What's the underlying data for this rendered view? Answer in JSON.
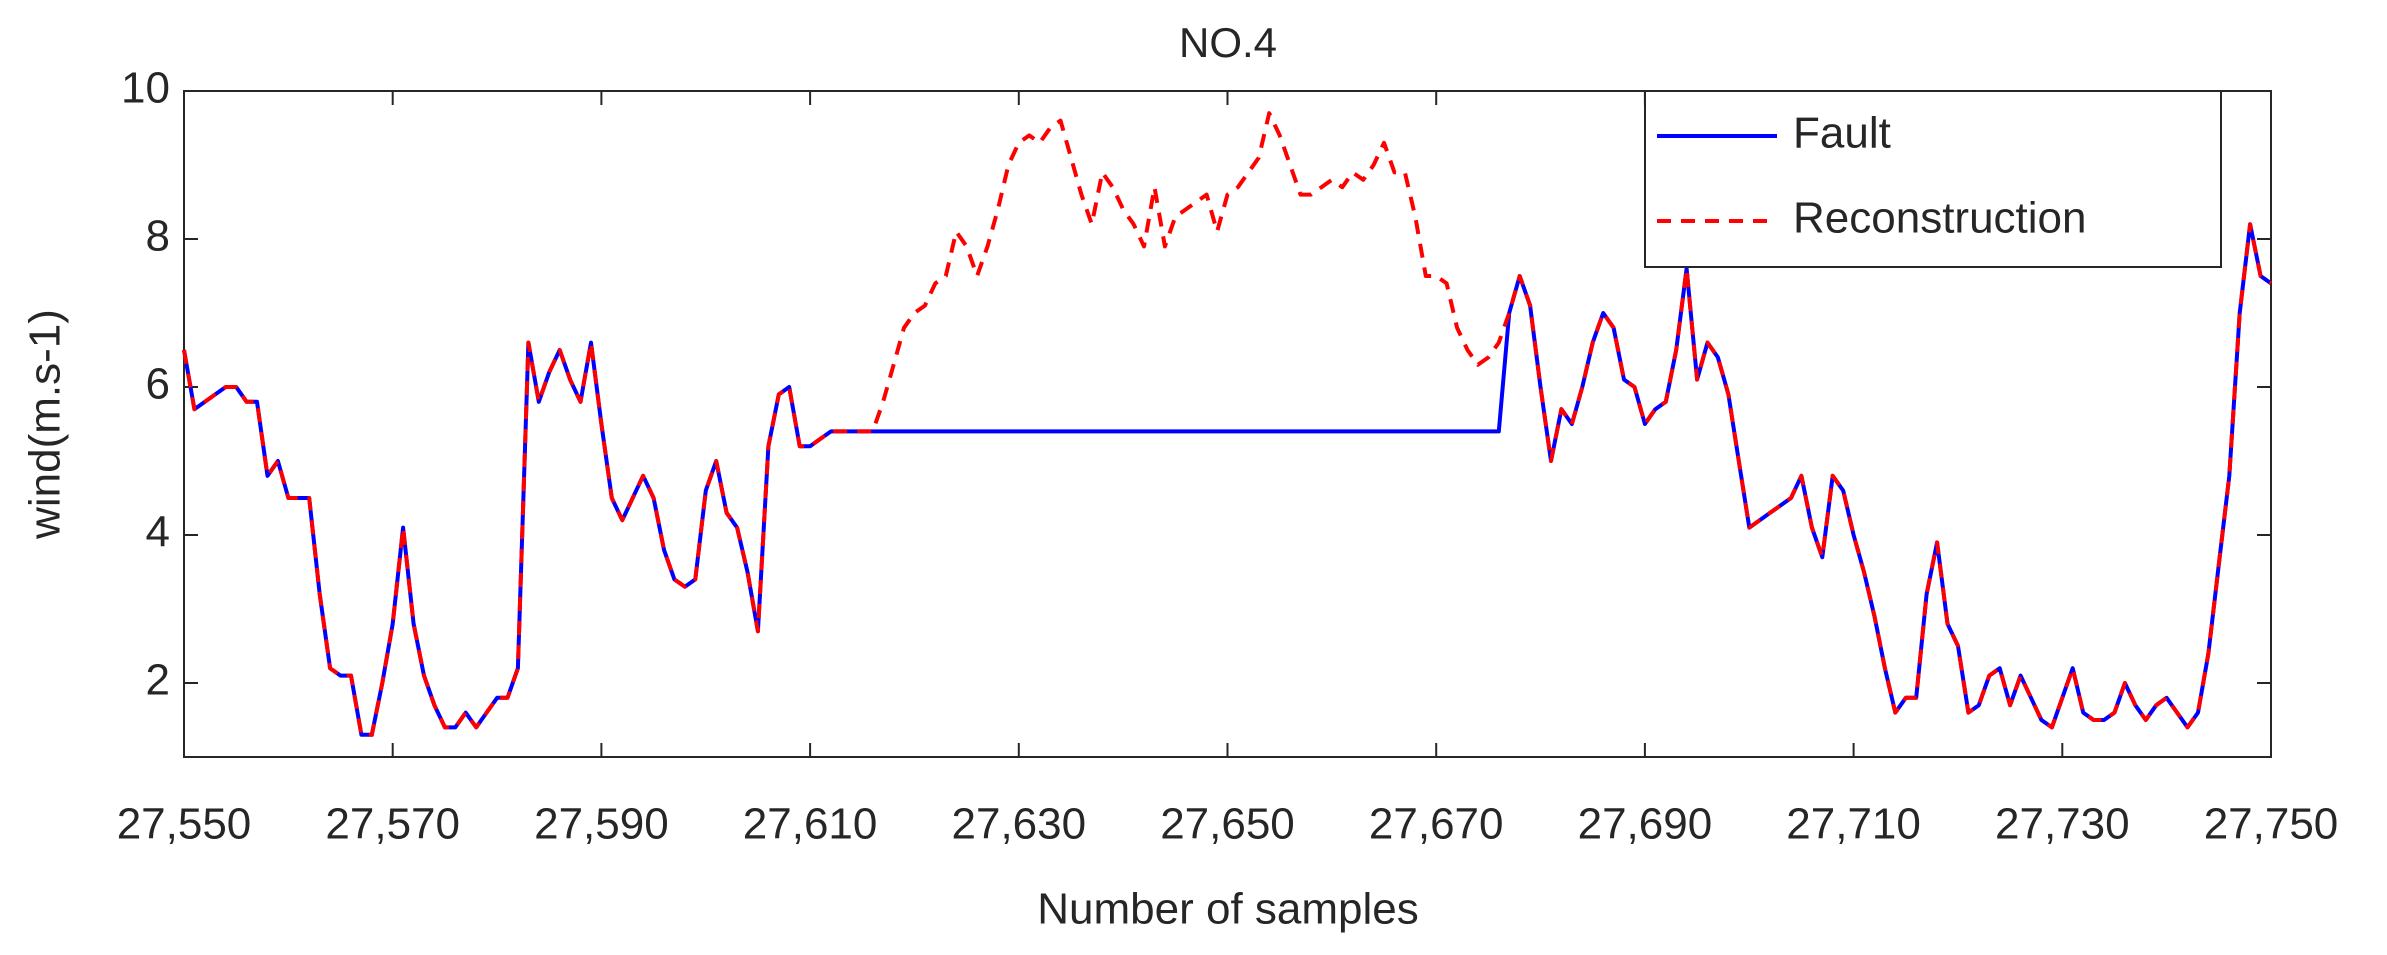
{
  "chart_data": {
    "type": "line",
    "title": "NO.4",
    "xlabel": "Number of samples",
    "ylabel": "wind(m.s-1)",
    "xlim": [
      27550,
      27750
    ],
    "ylim": [
      1,
      10
    ],
    "xticks": [
      {
        "value": 27550,
        "label": "27,550"
      },
      {
        "value": 27570,
        "label": "27,570"
      },
      {
        "value": 27590,
        "label": "27,590"
      },
      {
        "value": 27610,
        "label": "27,610"
      },
      {
        "value": 27630,
        "label": "27,630"
      },
      {
        "value": 27650,
        "label": "27,650"
      },
      {
        "value": 27670,
        "label": "27,670"
      },
      {
        "value": 27690,
        "label": "27,690"
      },
      {
        "value": 27710,
        "label": "27,710"
      },
      {
        "value": 27730,
        "label": "27,730"
      },
      {
        "value": 27750,
        "label": "27,750"
      }
    ],
    "yticks": [
      2,
      4,
      6,
      8,
      10
    ],
    "legend": "northeast",
    "x": [
      27550,
      27551,
      27552,
      27553,
      27554,
      27555,
      27556,
      27557,
      27558,
      27559,
      27560,
      27561,
      27562,
      27563,
      27564,
      27565,
      27566,
      27567,
      27568,
      27569,
      27570,
      27571,
      27572,
      27573,
      27574,
      27575,
      27576,
      27577,
      27578,
      27579,
      27580,
      27581,
      27582,
      27583,
      27584,
      27585,
      27586,
      27587,
      27588,
      27589,
      27590,
      27591,
      27592,
      27593,
      27594,
      27595,
      27596,
      27597,
      27598,
      27599,
      27600,
      27601,
      27602,
      27603,
      27604,
      27605,
      27606,
      27607,
      27608,
      27609,
      27610,
      27611,
      27612,
      27613,
      27614,
      27615,
      27616,
      27617,
      27618,
      27619,
      27620,
      27621,
      27622,
      27623,
      27624,
      27625,
      27626,
      27627,
      27628,
      27629,
      27630,
      27631,
      27632,
      27633,
      27634,
      27635,
      27636,
      27637,
      27638,
      27639,
      27640,
      27641,
      27642,
      27643,
      27644,
      27645,
      27646,
      27647,
      27648,
      27649,
      27650,
      27651,
      27652,
      27653,
      27654,
      27655,
      27656,
      27657,
      27658,
      27659,
      27660,
      27661,
      27662,
      27663,
      27664,
      27665,
      27666,
      27667,
      27668,
      27669,
      27670,
      27671,
      27672,
      27673,
      27674,
      27675,
      27676,
      27677,
      27678,
      27679,
      27680,
      27681,
      27682,
      27683,
      27684,
      27685,
      27686,
      27687,
      27688,
      27689,
      27690,
      27691,
      27692,
      27693,
      27694,
      27695,
      27696,
      27697,
      27698,
      27699,
      27700,
      27701,
      27702,
      27703,
      27704,
      27705,
      27706,
      27707,
      27708,
      27709,
      27710,
      27711,
      27712,
      27713,
      27714,
      27715,
      27716,
      27717,
      27718,
      27719,
      27720,
      27721,
      27722,
      27723,
      27724,
      27725,
      27726,
      27727,
      27728,
      27729,
      27730,
      27731,
      27732,
      27733,
      27734,
      27735,
      27736,
      27737,
      27738,
      27739,
      27740,
      27741,
      27742,
      27743,
      27744,
      27745,
      27746,
      27747,
      27748,
      27749,
      27750
    ],
    "series": [
      {
        "name": "Fault",
        "color": "#0000ff",
        "style": "solid",
        "values": [
          6.5,
          5.7,
          5.8,
          5.9,
          6.0,
          6.0,
          5.8,
          5.8,
          4.8,
          5.0,
          4.5,
          4.5,
          4.5,
          3.2,
          2.2,
          2.1,
          2.1,
          1.3,
          1.3,
          2.0,
          2.8,
          4.1,
          2.8,
          2.1,
          1.7,
          1.4,
          1.4,
          1.6,
          1.4,
          1.6,
          1.8,
          1.8,
          2.2,
          6.6,
          5.8,
          6.2,
          6.5,
          6.1,
          5.8,
          6.6,
          5.5,
          4.5,
          4.2,
          4.5,
          4.8,
          4.5,
          3.8,
          3.4,
          3.3,
          3.4,
          4.6,
          5.0,
          4.3,
          4.1,
          3.5,
          2.7,
          5.2,
          5.9,
          6.0,
          5.2,
          5.2,
          5.3,
          5.4,
          5.4,
          5.4,
          5.4,
          5.4,
          5.4,
          5.4,
          5.4,
          5.4,
          5.4,
          5.4,
          5.4,
          5.4,
          5.4,
          5.4,
          5.4,
          5.4,
          5.4,
          5.4,
          5.4,
          5.4,
          5.4,
          5.4,
          5.4,
          5.4,
          5.4,
          5.4,
          5.4,
          5.4,
          5.4,
          5.4,
          5.4,
          5.4,
          5.4,
          5.4,
          5.4,
          5.4,
          5.4,
          5.4,
          5.4,
          5.4,
          5.4,
          5.4,
          5.4,
          5.4,
          5.4,
          5.4,
          5.4,
          5.4,
          5.4,
          5.4,
          5.4,
          5.4,
          5.4,
          5.4,
          5.4,
          5.4,
          5.4,
          5.4,
          5.4,
          5.4,
          5.4,
          5.4,
          5.4,
          5.4,
          7.0,
          7.5,
          7.1,
          6.0,
          5.0,
          5.7,
          5.5,
          6.0,
          6.6,
          7.0,
          6.8,
          6.1,
          6.0,
          5.5,
          5.7,
          5.8,
          6.5,
          7.6,
          6.1,
          6.6,
          6.4,
          5.9,
          5.0,
          4.1,
          4.2,
          4.3,
          4.4,
          4.5,
          4.8,
          4.1,
          3.7,
          4.8,
          4.6,
          4.0,
          3.5,
          2.9,
          2.2,
          1.6,
          1.8,
          1.8,
          3.2,
          3.9,
          2.8,
          2.5,
          1.6,
          1.7,
          2.1,
          2.2,
          1.7,
          2.1,
          1.8,
          1.5,
          1.4,
          1.8,
          2.2,
          1.6,
          1.5,
          1.5,
          1.6,
          2.0,
          1.7,
          1.5,
          1.7,
          1.8,
          1.6,
          1.4,
          1.6,
          2.4,
          3.6,
          4.8,
          7.0,
          8.2,
          7.5,
          7.4
        ]
      },
      {
        "name": "Reconstruction",
        "color": "#ff0000",
        "style": "dashed",
        "values": [
          6.5,
          5.7,
          5.8,
          5.9,
          6.0,
          6.0,
          5.8,
          5.8,
          4.8,
          5.0,
          4.5,
          4.5,
          4.5,
          3.2,
          2.2,
          2.1,
          2.1,
          1.3,
          1.3,
          2.0,
          2.8,
          4.1,
          2.8,
          2.1,
          1.7,
          1.4,
          1.4,
          1.6,
          1.4,
          1.6,
          1.8,
          1.8,
          2.2,
          6.6,
          5.8,
          6.2,
          6.5,
          6.1,
          5.8,
          6.6,
          5.5,
          4.5,
          4.2,
          4.5,
          4.8,
          4.5,
          3.8,
          3.4,
          3.3,
          3.4,
          4.6,
          5.0,
          4.3,
          4.1,
          3.5,
          2.7,
          5.2,
          5.9,
          6.0,
          5.2,
          5.2,
          5.3,
          5.4,
          5.4,
          5.4,
          5.4,
          5.4,
          5.8,
          6.3,
          6.8,
          7.0,
          7.1,
          7.4,
          7.5,
          8.1,
          7.9,
          7.5,
          7.9,
          8.4,
          9.0,
          9.3,
          9.4,
          9.3,
          9.5,
          9.6,
          9.1,
          8.6,
          8.2,
          8.9,
          8.7,
          8.4,
          8.2,
          7.9,
          8.7,
          7.9,
          8.3,
          8.4,
          8.5,
          8.6,
          8.1,
          8.6,
          8.7,
          8.9,
          9.1,
          9.7,
          9.4,
          9.0,
          8.6,
          8.6,
          8.7,
          8.8,
          8.7,
          8.9,
          8.8,
          9.0,
          9.3,
          8.9,
          8.9,
          8.3,
          7.5,
          7.5,
          7.4,
          6.8,
          6.5,
          6.3,
          6.4,
          6.6,
          7.0,
          7.5,
          7.1,
          6.0,
          5.0,
          5.7,
          5.5,
          6.0,
          6.6,
          7.0,
          6.8,
          6.1,
          6.0,
          5.5,
          5.7,
          5.8,
          6.5,
          7.6,
          6.1,
          6.6,
          6.4,
          5.9,
          5.0,
          4.1,
          4.2,
          4.3,
          4.4,
          4.5,
          4.8,
          4.1,
          3.7,
          4.8,
          4.6,
          4.0,
          3.5,
          2.9,
          2.2,
          1.6,
          1.8,
          1.8,
          3.2,
          3.9,
          2.8,
          2.5,
          1.6,
          1.7,
          2.1,
          2.2,
          1.7,
          2.1,
          1.8,
          1.5,
          1.4,
          1.8,
          2.2,
          1.6,
          1.5,
          1.5,
          1.6,
          2.0,
          1.7,
          1.5,
          1.7,
          1.8,
          1.6,
          1.4,
          1.6,
          2.4,
          3.6,
          4.8,
          7.0,
          8.2,
          7.5,
          7.4
        ]
      }
    ]
  }
}
